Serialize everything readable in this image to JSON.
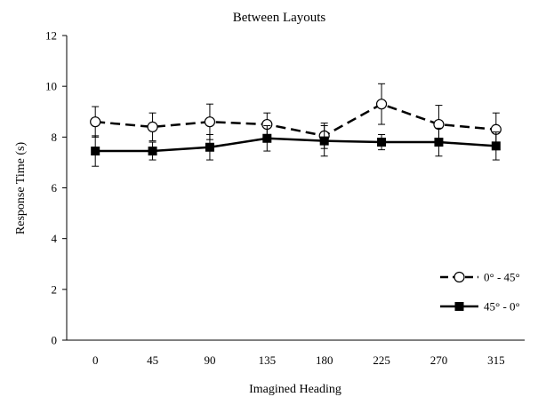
{
  "chart_data": {
    "type": "line",
    "title": "Between Layouts",
    "xlabel": "Imagined Heading",
    "ylabel": "Response Time (s)",
    "categories": [
      "0",
      "45",
      "90",
      "135",
      "180",
      "225",
      "270",
      "315"
    ],
    "ylim": [
      0,
      12
    ],
    "yticks": [
      0,
      2,
      4,
      6,
      8,
      10,
      12
    ],
    "grid": false,
    "legend_position": "bottom-right",
    "series": [
      {
        "name": "0° - 45°",
        "values": [
          8.6,
          8.4,
          8.6,
          8.5,
          8.05,
          9.3,
          8.5,
          8.3
        ],
        "error": [
          0.6,
          0.55,
          0.7,
          0.45,
          0.5,
          0.8,
          0.75,
          0.65
        ],
        "line_style": "dashed",
        "marker": "open-circle",
        "color": "#000000"
      },
      {
        "name": "45° - 0°",
        "values": [
          7.45,
          7.45,
          7.6,
          7.95,
          7.85,
          7.8,
          7.8,
          7.65
        ],
        "error": [
          0.6,
          0.35,
          0.5,
          0.5,
          0.6,
          0.3,
          0.55,
          0.55
        ],
        "line_style": "solid",
        "marker": "filled-square",
        "color": "#000000"
      }
    ]
  }
}
